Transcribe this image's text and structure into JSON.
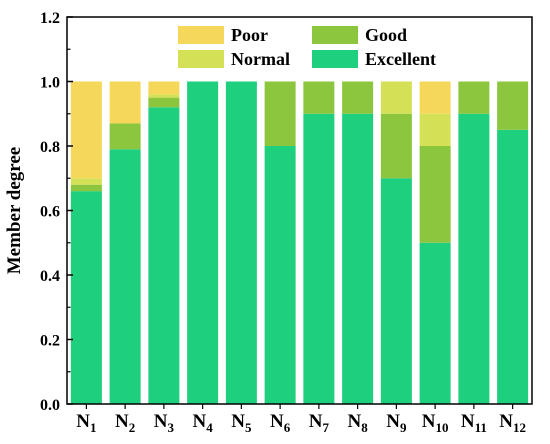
{
  "chart_data": {
    "type": "bar",
    "stacked": true,
    "orientation": "vertical",
    "title": "",
    "xlabel": "",
    "ylabel": "Member degree",
    "ylim": [
      0,
      1.2
    ],
    "yticks": [
      "0.0",
      "0.2",
      "0.4",
      "0.6",
      "0.8",
      "1.0",
      "1.2"
    ],
    "categories": [
      {
        "base": "N",
        "sub": "1"
      },
      {
        "base": "N",
        "sub": "2"
      },
      {
        "base": "N",
        "sub": "3"
      },
      {
        "base": "N",
        "sub": "4"
      },
      {
        "base": "N",
        "sub": "5"
      },
      {
        "base": "N",
        "sub": "6"
      },
      {
        "base": "N",
        "sub": "7"
      },
      {
        "base": "N",
        "sub": "8"
      },
      {
        "base": "N",
        "sub": "9"
      },
      {
        "base": "N",
        "sub": "10"
      },
      {
        "base": "N",
        "sub": "11"
      },
      {
        "base": "N",
        "sub": "12"
      }
    ],
    "series": [
      {
        "name": "Excellent",
        "color": "#1ecf7d",
        "values": [
          0.66,
          0.79,
          0.92,
          1.0,
          1.0,
          0.8,
          0.9,
          0.9,
          0.7,
          0.5,
          0.9,
          0.85
        ]
      },
      {
        "name": "Good",
        "color": "#8cc63f",
        "values": [
          0.02,
          0.08,
          0.03,
          0.0,
          0.0,
          0.2,
          0.1,
          0.1,
          0.2,
          0.3,
          0.1,
          0.15
        ]
      },
      {
        "name": "Normal",
        "color": "#d4e157",
        "values": [
          0.02,
          0.0,
          0.01,
          0.0,
          0.0,
          0.0,
          0.0,
          0.0,
          0.1,
          0.1,
          0.0,
          0.0
        ]
      },
      {
        "name": "Poor",
        "color": "#f5d75a",
        "values": [
          0.3,
          0.13,
          0.04,
          0.0,
          0.0,
          0.0,
          0.0,
          0.0,
          0.0,
          0.1,
          0.0,
          0.0
        ]
      }
    ],
    "legend": {
      "placement": "top-inside",
      "order": [
        "Poor",
        "Good",
        "Normal",
        "Excellent"
      ]
    },
    "grid": false
  }
}
